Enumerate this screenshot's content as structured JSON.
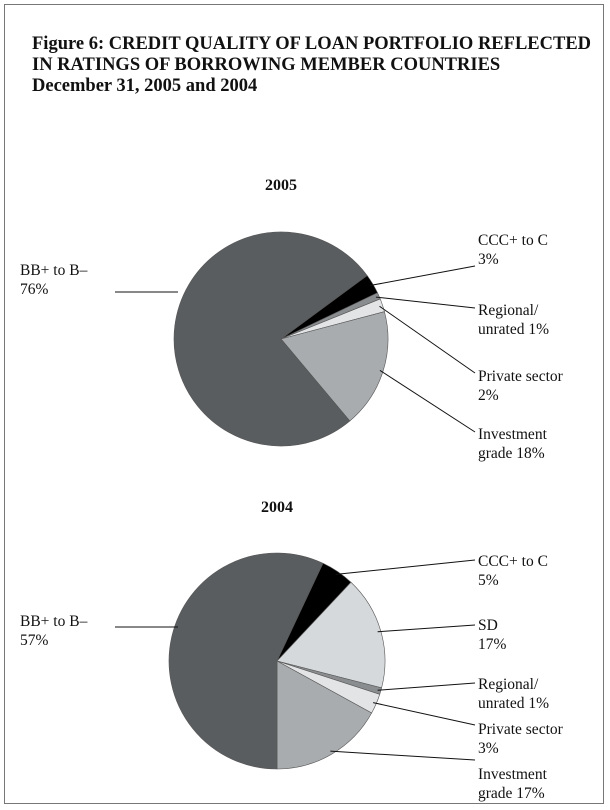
{
  "figure": {
    "title": "Figure 6: CREDIT QUALITY OF LOAN PORTFOLIO REFLECTED IN RATINGS OF BORROWING MEMBER COUNTRIES",
    "subtitle": "December 31, 2005 and 2004"
  },
  "chart_data": [
    {
      "type": "pie",
      "title": "2005",
      "categories": [
        "CCC+ to C",
        "Regional/ unrated",
        "Private sector",
        "Investment grade",
        "BB+ to B–"
      ],
      "values": [
        3,
        1,
        2,
        18,
        76
      ],
      "value_labels": [
        "3%",
        "1%",
        "2%",
        "18%",
        "76%"
      ],
      "colors": [
        "#000000",
        "#8a8d8f",
        "#e2e4e5",
        "#a8acae",
        "#595d5f"
      ]
    },
    {
      "type": "pie",
      "title": "2004",
      "categories": [
        "CCC+ to C",
        "SD",
        "Regional/ unrated",
        "Private sector",
        "Investment grade",
        "BB+ to B–"
      ],
      "values": [
        5,
        17,
        1,
        3,
        17,
        57
      ],
      "value_labels": [
        "5%",
        "17%",
        "1%",
        "3%",
        "17%",
        "57%"
      ],
      "colors": [
        "#000000",
        "#d6d9db",
        "#8a8d8f",
        "#e2e4e5",
        "#a8acae",
        "#595d5f"
      ]
    }
  ]
}
